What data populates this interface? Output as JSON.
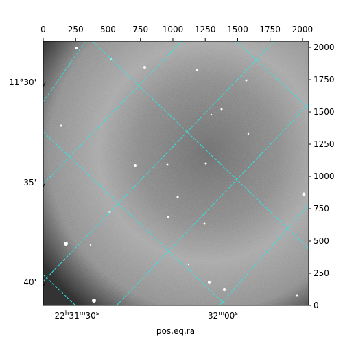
{
  "chart_data": {
    "type": "image",
    "xlabel": "pos.eq.ra",
    "xlim": [
      0,
      2048
    ],
    "ylim": [
      0,
      2048
    ],
    "xticks": [
      0,
      250,
      500,
      750,
      1000,
      1250,
      1500,
      1750,
      2000
    ],
    "yticks": [
      0,
      250,
      500,
      750,
      1000,
      1250,
      1500,
      1750,
      2000
    ],
    "dec_ticks": [
      "11°30'",
      "35'",
      "40'"
    ],
    "ra_ticks": [
      [
        "22",
        "h",
        "31",
        "m",
        "30",
        "s"
      ],
      [
        "32",
        "m",
        "00",
        "s"
      ]
    ]
  }
}
